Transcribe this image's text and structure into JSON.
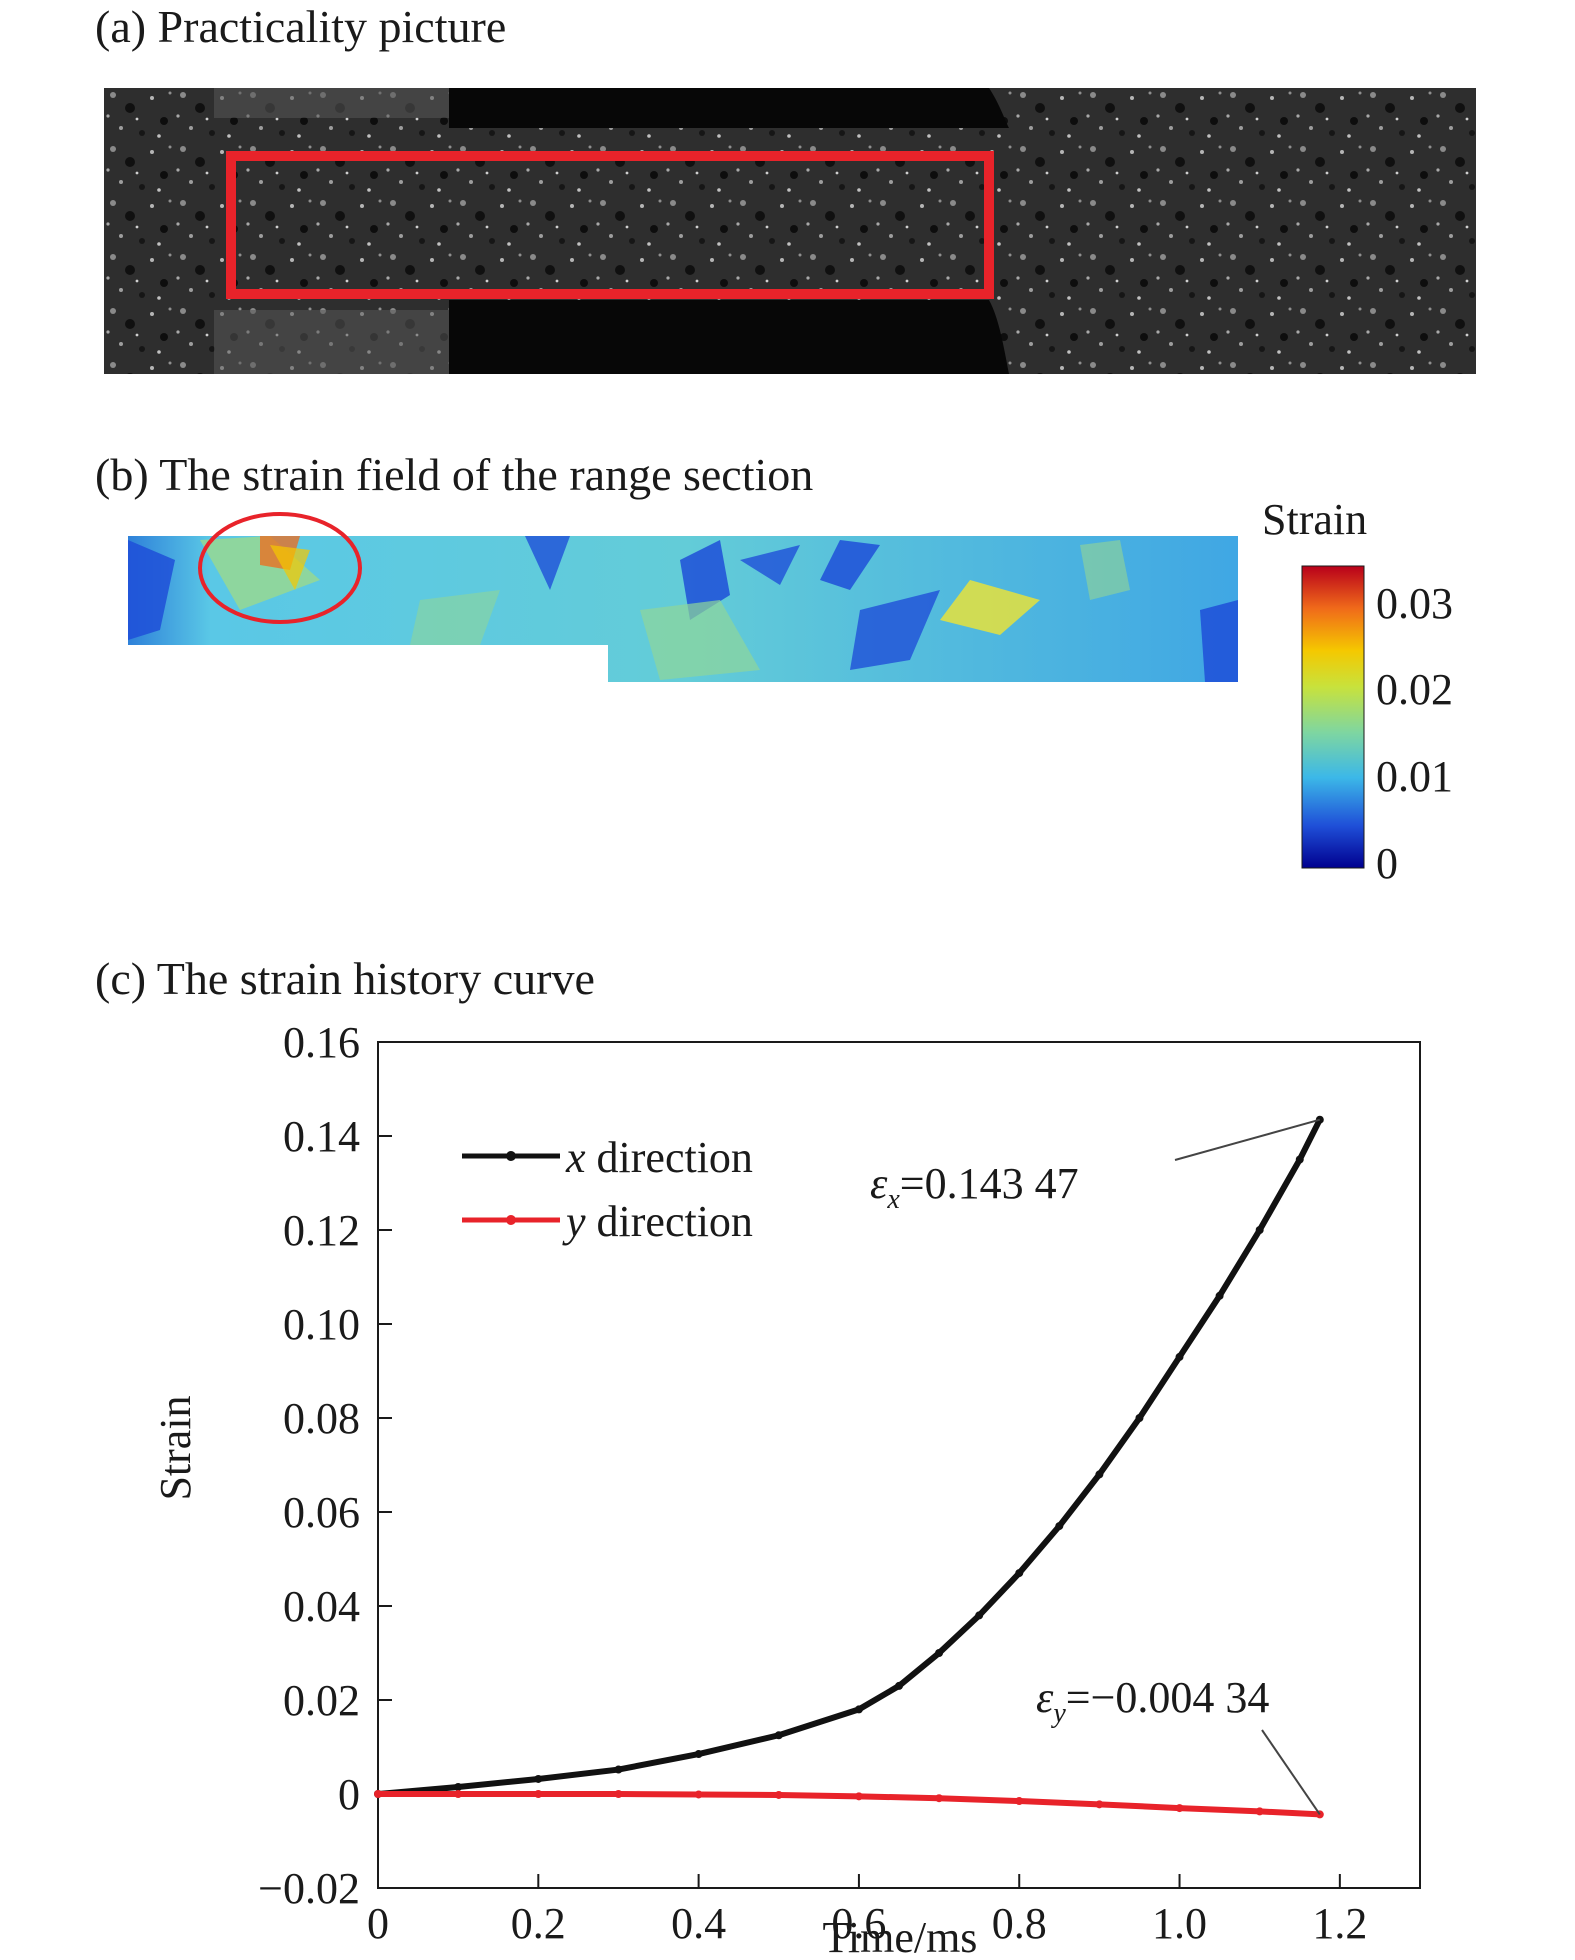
{
  "panels": {
    "a": {
      "title": "(a) Practicality picture"
    },
    "b": {
      "title": "(b) The strain field of the range section"
    },
    "c": {
      "title": "(c) The strain history curve"
    }
  },
  "colorbar": {
    "title": "Strain",
    "ticks": [
      "0.03",
      "0.02",
      "0.01",
      "0"
    ],
    "colormap": [
      "#00008f",
      "#1f4fd8",
      "#3cb8e8",
      "#7fd6a0",
      "#c8e23c",
      "#f5c800",
      "#f06a1a",
      "#b8001a"
    ]
  },
  "colors": {
    "highlight_red": "#e8232a",
    "x_series": "#111111",
    "y_series": "#e8232a"
  },
  "chart_data": {
    "type": "line",
    "title": "",
    "xlabel": "Time/ms",
    "ylabel": "Strain",
    "xlim": [
      0,
      1.3
    ],
    "ylim": [
      -0.02,
      0.16
    ],
    "xticks": [
      "0",
      "0.2",
      "0.4",
      "0.6",
      "0.8",
      "1.0",
      "1.2"
    ],
    "yticks": [
      "−0.02",
      "0",
      "0.02",
      "0.04",
      "0.06",
      "0.08",
      "0.10",
      "0.12",
      "0.14",
      "0.16"
    ],
    "legend_position": "top-left",
    "series": [
      {
        "name": "x direction",
        "name_var": "x",
        "name_rest": " direction",
        "color": "#111111",
        "x": [
          0,
          0.1,
          0.2,
          0.3,
          0.4,
          0.5,
          0.6,
          0.65,
          0.7,
          0.75,
          0.8,
          0.85,
          0.9,
          0.95,
          1.0,
          1.05,
          1.1,
          1.15,
          1.175
        ],
        "y": [
          0,
          0.0015,
          0.0032,
          0.0052,
          0.0085,
          0.0125,
          0.018,
          0.023,
          0.03,
          0.038,
          0.047,
          0.057,
          0.068,
          0.08,
          0.093,
          0.106,
          0.12,
          0.135,
          0.14347
        ]
      },
      {
        "name": "y direction",
        "name_var": "y",
        "name_rest": " direction",
        "color": "#e8232a",
        "x": [
          0,
          0.1,
          0.2,
          0.3,
          0.4,
          0.5,
          0.6,
          0.7,
          0.8,
          0.9,
          1.0,
          1.1,
          1.175
        ],
        "y": [
          0,
          0,
          0,
          0,
          -0.0001,
          -0.0002,
          -0.0005,
          -0.0009,
          -0.0015,
          -0.0022,
          -0.003,
          -0.0037,
          -0.00434
        ]
      }
    ],
    "annotations": [
      {
        "symbol": "ε",
        "sub": "x",
        "text": "=0.143 47",
        "point": [
          1.175,
          0.14347
        ]
      },
      {
        "symbol": "ε",
        "sub": "y",
        "text": "=−0.004 34",
        "point": [
          1.175,
          -0.00434
        ]
      }
    ]
  }
}
